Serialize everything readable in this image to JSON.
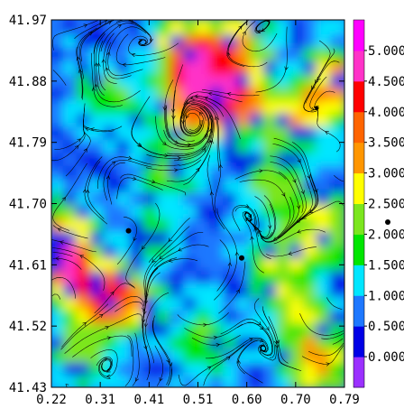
{
  "chart_data": {
    "type": "heatmap",
    "title": "",
    "xlabel": "",
    "ylabel": "",
    "xlim": [
      0.22,
      0.79
    ],
    "ylim": [
      41.43,
      41.97
    ],
    "x_ticks": [
      "0.22",
      "0.31",
      "0.41",
      "0.51",
      "0.60",
      "0.70",
      "0.79"
    ],
    "y_ticks": [
      "41.97",
      "41.88",
      "41.79",
      "41.70",
      "41.61",
      "41.52",
      "41.43"
    ],
    "colorbar": {
      "labels": [
        "0.000",
        "0.500",
        "1.000",
        "1.500",
        "2.000",
        "2.500",
        "3.000",
        "3.500",
        "4.000",
        "4.500",
        "5.000"
      ],
      "colors": [
        "#9b30ff",
        "#0000e6",
        "#1e78ff",
        "#00e6ff",
        "#00e600",
        "#7be61e",
        "#ffff00",
        "#ff9600",
        "#ff6400",
        "#ff0000",
        "#ff32c8",
        "#ff00ff"
      ]
    },
    "markers": [
      {
        "x": 0.37,
        "y": 41.66
      },
      {
        "x": 0.59,
        "y": 41.62
      }
    ],
    "overlay": "streamlines"
  }
}
